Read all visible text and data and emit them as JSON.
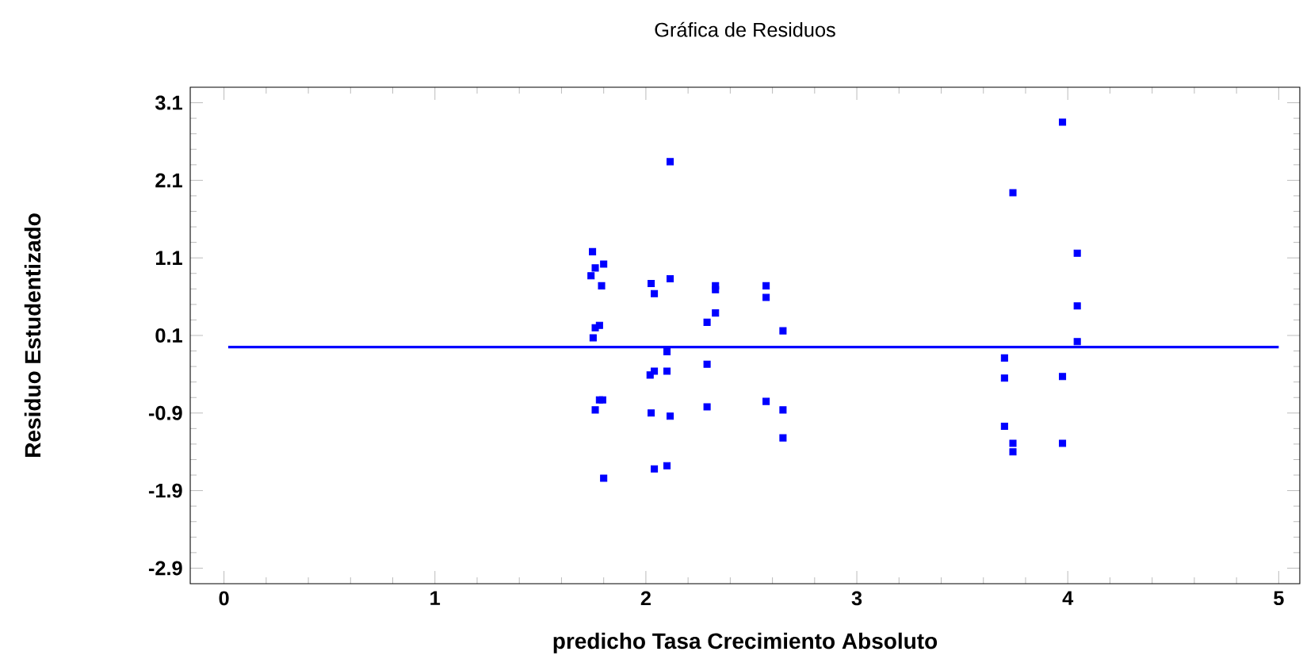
{
  "chart_data": {
    "type": "scatter",
    "title": "Gráfica de Residuos",
    "xlabel": "predicho  Tasa Crecimiento Absoluto",
    "ylabel": "Residuo Estudentizado",
    "xlim": [
      -0.16,
      5.1
    ],
    "ylim": [
      -3.1,
      3.3
    ],
    "xticks": [
      0,
      1,
      2,
      3,
      4,
      5
    ],
    "yticks": [
      -2.9,
      -1.9,
      -0.9,
      0.1,
      1.1,
      2.1,
      3.1
    ],
    "grid": false,
    "marker": "square",
    "series": [
      {
        "color": "#0000ff",
        "x": [
          2.115,
          1.747,
          1.8,
          1.76,
          1.74,
          1.79,
          2.025,
          2.04,
          2.115,
          2.33,
          2.33,
          2.57,
          2.57,
          2.33,
          2.29,
          2.65,
          1.78,
          1.76,
          1.75,
          2.1,
          2.29,
          2.04,
          2.02,
          2.1,
          1.795,
          1.78,
          1.76,
          2.025,
          2.115,
          2.29,
          2.57,
          2.65,
          2.65,
          1.8,
          2.04,
          2.1,
          3.975,
          3.74,
          4.045,
          4.045,
          4.045,
          3.7,
          3.7,
          3.975,
          3.7,
          3.74,
          3.74,
          3.975
        ],
        "values": [
          2.34,
          1.18,
          1.02,
          0.97,
          0.87,
          0.74,
          0.77,
          0.64,
          0.83,
          0.74,
          0.69,
          0.74,
          0.59,
          0.39,
          0.27,
          0.16,
          0.23,
          0.2,
          0.07,
          -0.11,
          -0.27,
          -0.36,
          -0.41,
          -0.36,
          -0.73,
          -0.73,
          -0.86,
          -0.9,
          -0.94,
          -0.82,
          -0.75,
          -0.86,
          -1.22,
          -1.74,
          -1.62,
          -1.58,
          2.85,
          1.94,
          1.16,
          0.48,
          0.02,
          -0.19,
          -0.45,
          -0.43,
          -1.07,
          -1.29,
          -1.4,
          -1.29
        ]
      },
      {
        "type": "line",
        "color": "#0000ff",
        "line_style": "solid",
        "marker": "none",
        "x": [
          0.02,
          5.0
        ],
        "values": [
          -0.05,
          -0.05
        ]
      }
    ]
  }
}
